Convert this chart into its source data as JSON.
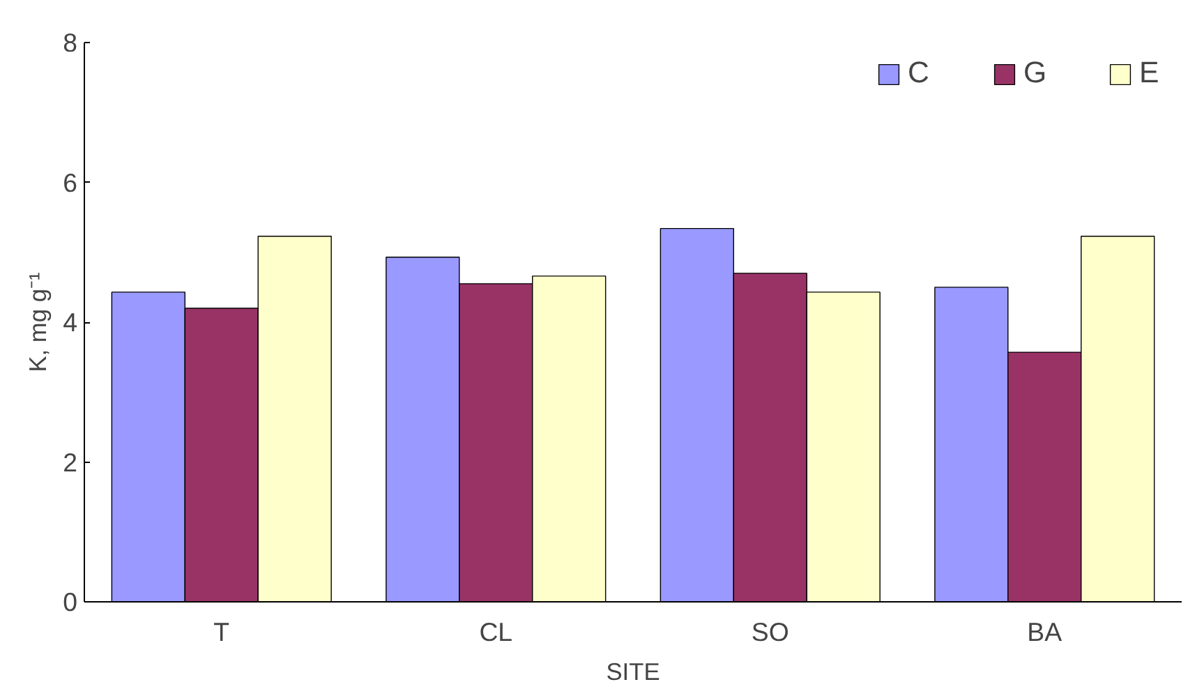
{
  "chart_data": {
    "type": "bar",
    "xlabel": "SITE",
    "ylabel": "K, mg g⁻¹",
    "categories": [
      "T",
      "CL",
      "SO",
      "BA"
    ],
    "series": [
      {
        "name": "C",
        "color": "#9999ff",
        "values": [
          4.43,
          4.93,
          5.34,
          4.5
        ]
      },
      {
        "name": "G",
        "color": "#993366",
        "values": [
          4.2,
          4.55,
          4.7,
          3.57
        ]
      },
      {
        "name": "E",
        "color": "#ffffcc",
        "values": [
          5.23,
          4.66,
          4.43,
          5.23
        ]
      }
    ],
    "ylim": [
      0,
      8
    ],
    "yticks": [
      0,
      2,
      4,
      6,
      8
    ],
    "grid": false,
    "legend": "top right"
  }
}
